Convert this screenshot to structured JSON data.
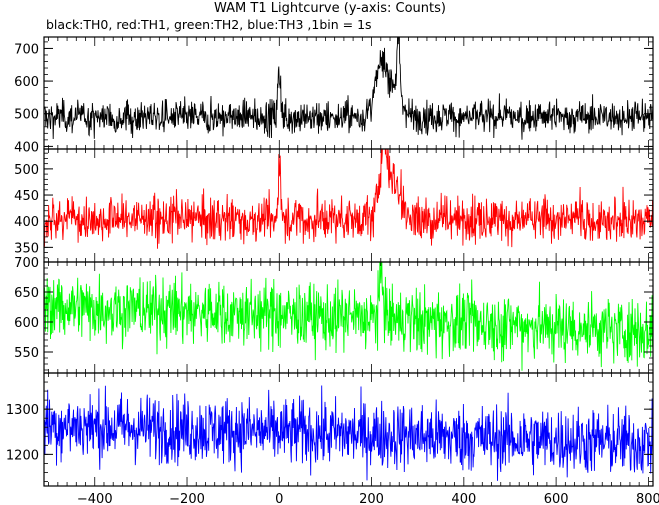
{
  "chart_data": {
    "type": "line",
    "title": "WAM T1 Lightcurve (y-axis: Counts)",
    "subtitle": "black:TH0, red:TH1, green:TH2, blue:TH3 ,1bin = 1s",
    "x_range": [
      -510,
      810
    ],
    "x_ticks": [
      -400,
      -200,
      0,
      200,
      400,
      600,
      800
    ],
    "x_tick_labels": [
      "−400",
      "−200",
      "0",
      "200",
      "400",
      "600",
      "800"
    ],
    "panels": [
      {
        "series": "TH0",
        "color": "#000000",
        "ylim": [
          392,
          735
        ],
        "y_ticks": [
          400,
          500,
          600,
          700
        ],
        "baseline": 490,
        "noise": 26,
        "features": [
          {
            "x": 0,
            "peak": 150,
            "width": 3
          },
          {
            "x": 220,
            "peak": 130,
            "width": 12
          },
          {
            "x": 245,
            "peak": 95,
            "width": 18
          },
          {
            "x": 258,
            "peak": 190,
            "width": 3
          }
        ]
      },
      {
        "series": "TH1",
        "color": "#ff0000",
        "ylim": [
          322,
          538
        ],
        "y_ticks": [
          350,
          400,
          450,
          500
        ],
        "baseline": 404,
        "noise": 22,
        "features": [
          {
            "x": 0,
            "peak": 95,
            "width": 3
          },
          {
            "x": 225,
            "peak": 110,
            "width": 8
          },
          {
            "x": 245,
            "peak": 75,
            "width": 18
          }
        ]
      },
      {
        "series": "TH2",
        "color": "#00ff00",
        "ylim": [
          515,
          700
        ],
        "y_ticks": [
          550,
          600,
          650,
          700
        ],
        "baseline": 628,
        "end_value": 585,
        "noise": 28,
        "features": [
          {
            "x": 222,
            "peak": 65,
            "width": 5
          }
        ]
      },
      {
        "series": "TH3",
        "color": "#0000ff",
        "ylim": [
          1130,
          1380
        ],
        "y_ticks": [
          1200,
          1300
        ],
        "baseline": 1265,
        "end_value": 1225,
        "noise": 38,
        "features": []
      }
    ]
  }
}
